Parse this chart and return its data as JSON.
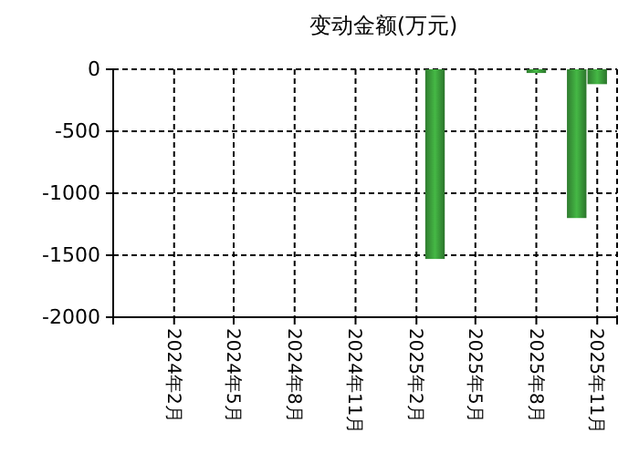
{
  "chart_data": {
    "type": "bar",
    "title": "变动金额(万元)",
    "x": [
      "2025-03",
      "2025-08",
      "2025-10",
      "2025-11"
    ],
    "values": [
      -1530,
      -30,
      -1200,
      -120
    ],
    "color": "#3a9a3a",
    "xlim": [
      "2023-11",
      "2025-12"
    ],
    "xticks": [
      {
        "value": "2024-02",
        "label": "2024年2月"
      },
      {
        "value": "2024-05",
        "label": "2024年5月"
      },
      {
        "value": "2024-08",
        "label": "2024年8月"
      },
      {
        "value": "2024-11",
        "label": "2024年11月"
      },
      {
        "value": "2025-02",
        "label": "2025年2月"
      },
      {
        "value": "2025-05",
        "label": "2025年5月"
      },
      {
        "value": "2025-08",
        "label": "2025年8月"
      },
      {
        "value": "2025-11",
        "label": "2025年11月"
      }
    ],
    "ylim": [
      -2000,
      0
    ],
    "yticks": [
      0,
      -500,
      -1000,
      -1500,
      -2000
    ],
    "grid": true
  }
}
